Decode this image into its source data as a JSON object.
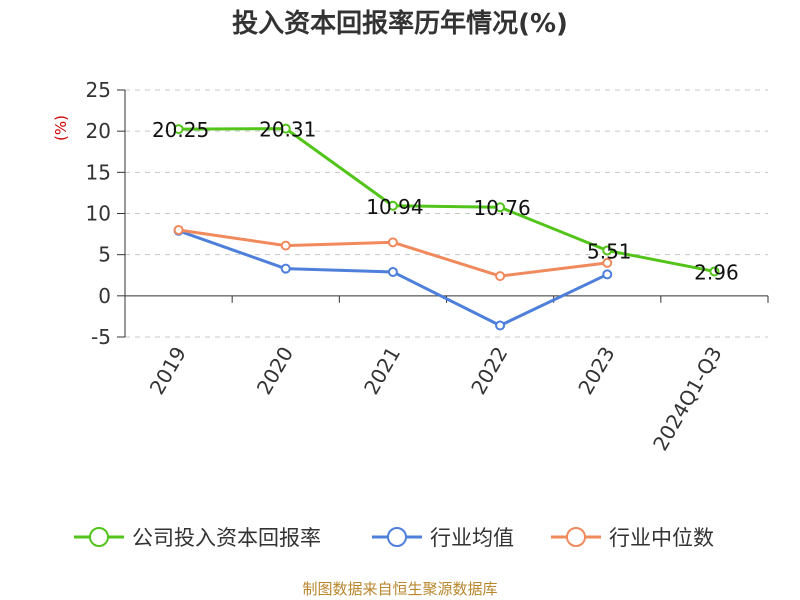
{
  "chart_data": {
    "type": "line",
    "title": "投入资本回报率历年情况(%)",
    "ylabel": "(%)",
    "ylim": [
      -5,
      25
    ],
    "yticks": [
      "25",
      "20",
      "15",
      "10",
      "5",
      "0",
      "-5"
    ],
    "grid": true,
    "categories": [
      "2019",
      "2020",
      "2021",
      "2022",
      "2023",
      "2024Q1-Q3"
    ],
    "series": [
      {
        "name": "公司投入资本回报率",
        "color": "#52c41a",
        "values": [
          20.25,
          20.31,
          10.94,
          10.76,
          5.51,
          2.96
        ],
        "labels": [
          "20.25",
          "20.31",
          "10.94",
          "10.76",
          "5.51",
          "2.96"
        ]
      },
      {
        "name": "行业均值",
        "color": "#4e7fdb",
        "values": [
          7.9,
          3.3,
          2.9,
          -3.6,
          2.6,
          null
        ]
      },
      {
        "name": "行业中位数",
        "color": "#f08a5d",
        "values": [
          8.0,
          6.1,
          6.5,
          2.4,
          4.0,
          null
        ]
      }
    ],
    "legend": "bottom",
    "source": "制图数据来自恒生聚源数据库"
  }
}
